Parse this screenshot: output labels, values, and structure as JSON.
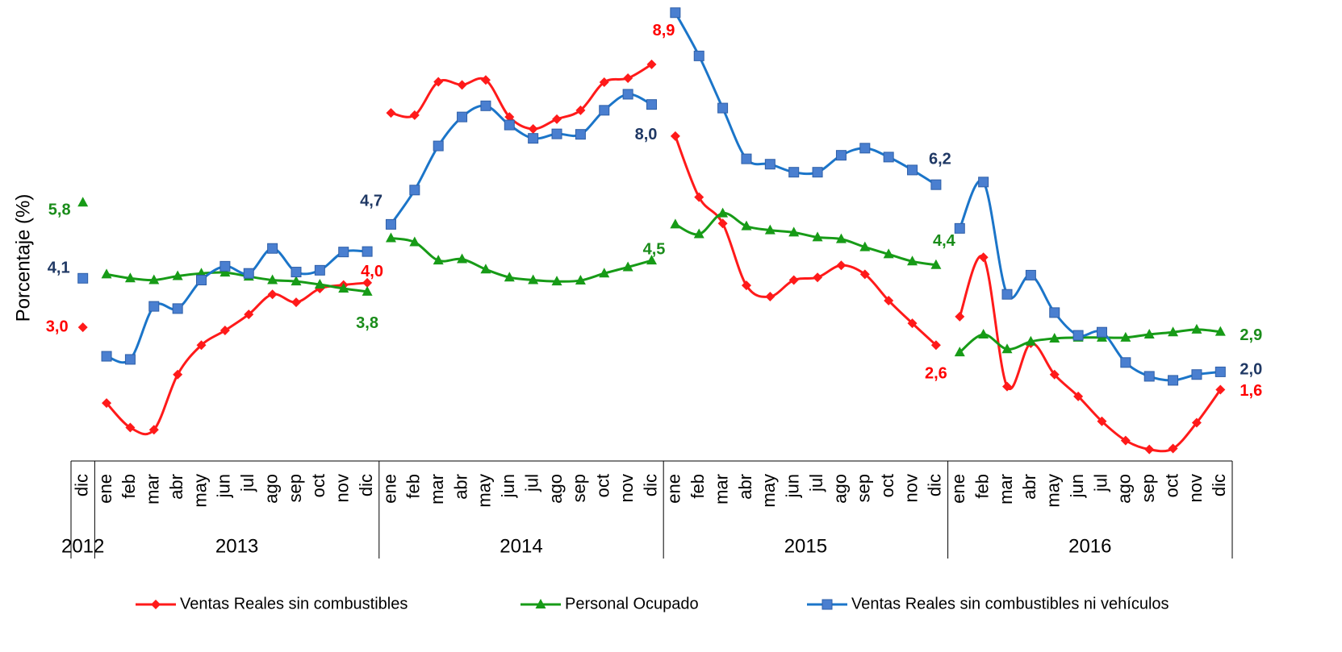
{
  "chart_data": {
    "type": "line",
    "y_label": "Porcentaje (%)",
    "ylim": [
      0,
      10.2
    ],
    "legend": "bottom",
    "groups": [
      {
        "label": "2012",
        "categories": [
          "dic"
        ]
      },
      {
        "label": "2013",
        "categories": [
          "ene",
          "feb",
          "mar",
          "abr",
          "may",
          "jun",
          "jul",
          "ago",
          "sep",
          "oct",
          "nov",
          "dic"
        ]
      },
      {
        "label": "2014",
        "categories": [
          "ene",
          "feb",
          "mar",
          "abr",
          "may",
          "jun",
          "jul",
          "ago",
          "sep",
          "oct",
          "nov",
          "dic"
        ]
      },
      {
        "label": "2015",
        "categories": [
          "ene",
          "feb",
          "mar",
          "abr",
          "may",
          "jun",
          "jul",
          "ago",
          "sep",
          "oct",
          "nov",
          "dic"
        ]
      },
      {
        "label": "2016",
        "categories": [
          "ene",
          "feb",
          "mar",
          "abr",
          "may",
          "jun",
          "jul",
          "ago",
          "sep",
          "oct",
          "nov",
          "dic"
        ]
      }
    ],
    "series": [
      {
        "name": "Ventas Reales sin combustibles",
        "color": "#ff1a1a",
        "label_color": "#ff0000",
        "marker": "diamond",
        "values": [
          [
            3.0
          ],
          [
            1.3,
            0.75,
            0.7,
            1.94,
            2.6,
            2.93,
            3.29,
            3.74,
            3.56,
            3.87,
            3.95,
            4.0
          ],
          [
            7.81,
            7.76,
            8.51,
            8.44,
            8.55,
            7.72,
            7.45,
            7.67,
            7.87,
            8.5,
            8.59,
            8.9
          ],
          [
            7.29,
            5.92,
            5.33,
            3.94,
            3.69,
            4.06,
            4.12,
            4.39,
            4.19,
            3.6,
            3.09,
            2.6
          ],
          [
            3.24,
            4.57,
            1.67,
            2.64,
            1.94,
            1.45,
            0.89,
            0.46,
            0.26,
            0.28,
            0.86,
            1.6
          ]
        ],
        "value_labels": [
          [
            "3,0"
          ],
          [
            null,
            null,
            null,
            null,
            null,
            null,
            null,
            null,
            null,
            null,
            null,
            "4,0"
          ],
          [
            null,
            null,
            null,
            null,
            null,
            null,
            null,
            null,
            null,
            null,
            null,
            "8,9"
          ],
          [
            null,
            null,
            null,
            null,
            null,
            null,
            null,
            null,
            null,
            null,
            null,
            "2,6"
          ],
          [
            null,
            null,
            null,
            null,
            null,
            null,
            null,
            null,
            null,
            null,
            null,
            "1,6"
          ]
        ]
      },
      {
        "name": "Personal Ocupado",
        "color": "#179b17",
        "label_color": "#1a8c1a",
        "marker": "triangle",
        "values": [
          [
            5.8
          ],
          [
            4.19,
            4.1,
            4.06,
            4.15,
            4.21,
            4.23,
            4.14,
            4.06,
            4.03,
            3.96,
            3.87,
            3.8
          ],
          [
            5.0,
            4.91,
            4.5,
            4.53,
            4.3,
            4.12,
            4.06,
            4.03,
            4.05,
            4.21,
            4.35,
            4.5
          ],
          [
            5.31,
            5.09,
            5.56,
            5.27,
            5.18,
            5.13,
            5.02,
            4.98,
            4.8,
            4.64,
            4.48,
            4.4
          ],
          [
            2.44,
            2.84,
            2.51,
            2.68,
            2.75,
            2.77,
            2.77,
            2.77,
            2.84,
            2.89,
            2.95,
            2.9
          ]
        ],
        "value_labels": [
          [
            "5,8"
          ],
          [
            null,
            null,
            null,
            null,
            null,
            null,
            null,
            null,
            null,
            null,
            null,
            "3,8"
          ],
          [
            null,
            null,
            null,
            null,
            null,
            null,
            null,
            null,
            null,
            null,
            null,
            "4,5"
          ],
          [
            null,
            null,
            null,
            null,
            null,
            null,
            null,
            null,
            null,
            null,
            null,
            "4,4"
          ],
          [
            null,
            null,
            null,
            null,
            null,
            null,
            null,
            null,
            null,
            null,
            null,
            "2,9"
          ]
        ]
      },
      {
        "name": "Ventas Reales sin combustibles ni vehículos",
        "color": "#1b75c9",
        "label_color": "#1f3864",
        "marker": "square",
        "values": [
          [
            4.1
          ],
          [
            2.35,
            2.28,
            3.47,
            3.42,
            4.06,
            4.37,
            4.21,
            4.77,
            4.24,
            4.28,
            4.69,
            4.7
          ],
          [
            5.31,
            6.08,
            7.07,
            7.72,
            7.97,
            7.54,
            7.24,
            7.34,
            7.33,
            7.87,
            8.23,
            8.0
          ],
          [
            10.06,
            9.09,
            7.92,
            6.78,
            6.66,
            6.48,
            6.48,
            6.86,
            7.02,
            6.82,
            6.53,
            6.2
          ],
          [
            5.22,
            6.26,
            3.74,
            4.17,
            3.33,
            2.82,
            2.89,
            2.21,
            1.9,
            1.81,
            1.94,
            2.0
          ]
        ],
        "value_labels": [
          [
            "4,1"
          ],
          [
            null,
            null,
            null,
            null,
            null,
            null,
            null,
            null,
            null,
            null,
            null,
            "4,7"
          ],
          [
            null,
            null,
            null,
            null,
            null,
            null,
            null,
            null,
            null,
            null,
            null,
            "8,0"
          ],
          [
            null,
            null,
            null,
            null,
            null,
            null,
            null,
            null,
            null,
            null,
            null,
            "6,2"
          ],
          [
            null,
            null,
            null,
            null,
            null,
            null,
            null,
            null,
            null,
            null,
            null,
            "2,0"
          ]
        ]
      }
    ]
  }
}
